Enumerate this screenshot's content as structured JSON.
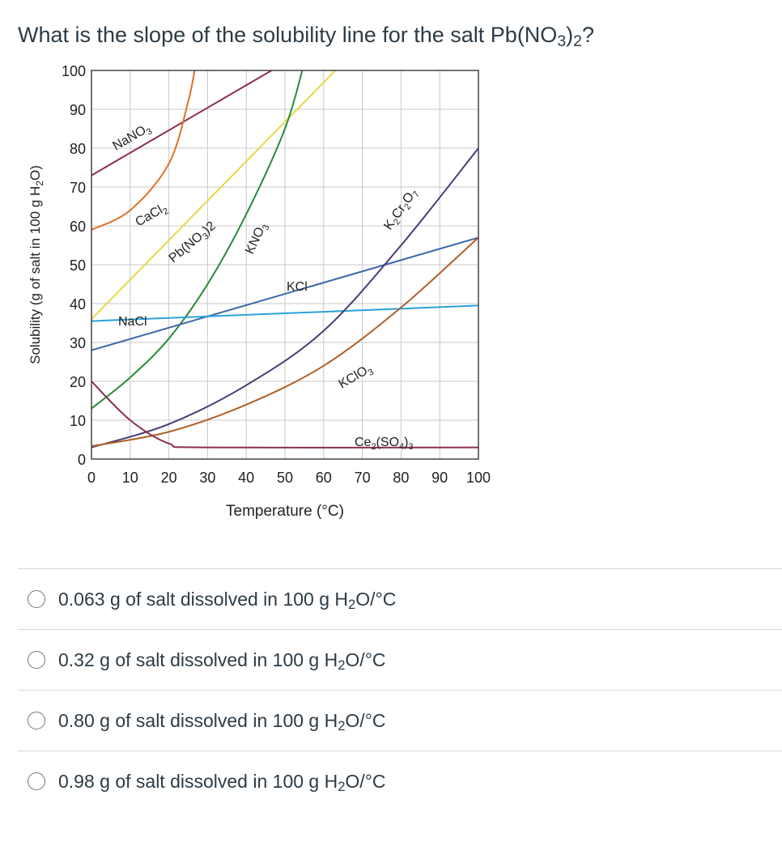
{
  "question": {
    "before": "What is the slope of the solubility line for the salt Pb(NO",
    "sub1": "3",
    "mid": ")",
    "sub2": "2",
    "after": "?"
  },
  "answers": [
    {
      "value": "0.063",
      "text": " g of salt dissolved in 100 g H",
      "sub": "2",
      "tail": "O/°C"
    },
    {
      "value": "0.32",
      "text": " g of salt dissolved in 100 g H",
      "sub": "2",
      "tail": "O/°C"
    },
    {
      "value": "0.80",
      "text": " g of salt dissolved in 100 g H",
      "sub": "2",
      "tail": "O/°C"
    },
    {
      "value": "0.98",
      "text": " g of salt dissolved in 100 g H",
      "sub": "2",
      "tail": "O/°C"
    }
  ],
  "chart_data": {
    "type": "line",
    "xlabel": "Temperature (°C)",
    "ylabel": "Solubility (g of salt in 100 g H₂O)",
    "xlim": [
      0,
      100
    ],
    "ylim": [
      0,
      100
    ],
    "xticks": [
      0,
      10,
      20,
      30,
      40,
      50,
      60,
      70,
      80,
      90,
      100
    ],
    "yticks": [
      0,
      10,
      20,
      30,
      40,
      50,
      60,
      70,
      80,
      90,
      100
    ],
    "grid": true,
    "series": [
      {
        "name": "NaNO3",
        "color": "#8a2f4e",
        "x": [
          0,
          50
        ],
        "y": [
          73,
          102
        ]
      },
      {
        "name": "CaCl2",
        "color": "#e0702a",
        "x": [
          0,
          10,
          20,
          25,
          27
        ],
        "y": [
          59,
          64,
          76,
          92,
          102
        ]
      },
      {
        "name": "Pb(NO3)2",
        "color": "#e8d84a",
        "x": [
          0,
          65
        ],
        "y": [
          36,
          102
        ]
      },
      {
        "name": "KNO3",
        "color": "#2a8a3a",
        "x": [
          0,
          10,
          20,
          30,
          40,
          50,
          55
        ],
        "y": [
          13,
          21,
          31,
          45,
          63,
          85,
          102
        ]
      },
      {
        "name": "KCl",
        "color": "#3a68a8",
        "x": [
          0,
          100
        ],
        "y": [
          28,
          57
        ]
      },
      {
        "name": "NaCl",
        "color": "#2aa2d8",
        "x": [
          0,
          100
        ],
        "y": [
          35.5,
          39.5
        ]
      },
      {
        "name": "K2Cr2O7",
        "color": "#4a3a78",
        "x": [
          0,
          20,
          40,
          60,
          80,
          100
        ],
        "y": [
          3,
          9,
          19,
          33,
          55,
          80
        ]
      },
      {
        "name": "KClO3",
        "color": "#b0602a",
        "x": [
          0,
          20,
          40,
          60,
          80,
          100
        ],
        "y": [
          3.3,
          7,
          14,
          24,
          39,
          57
        ]
      },
      {
        "name": "Ce2(SO4)3",
        "color": "#8a2f4e",
        "x": [
          0,
          10,
          20,
          30,
          100
        ],
        "y": [
          20,
          10,
          4,
          3,
          3
        ]
      }
    ]
  }
}
